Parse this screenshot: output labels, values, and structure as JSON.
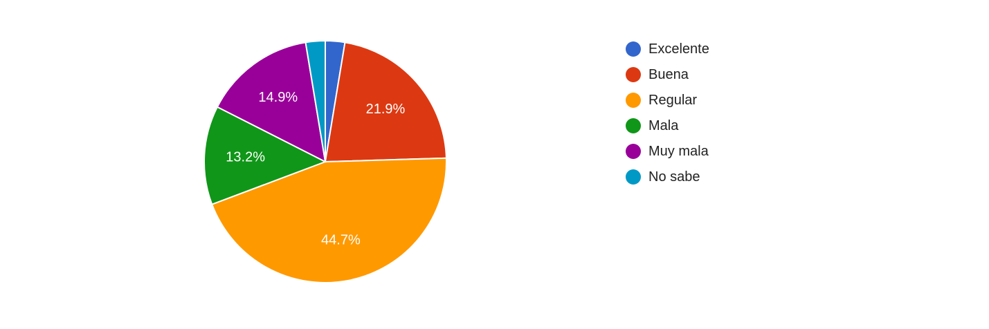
{
  "chart_data": {
    "type": "pie",
    "start_angle_deg": 90,
    "direction": "clockwise",
    "legend_position": "right",
    "slices": [
      {
        "label": "Excelente",
        "value": 2.6,
        "value_label": "",
        "color": "#3366cc"
      },
      {
        "label": "Buena",
        "value": 21.9,
        "value_label": "21.9%",
        "color": "#dc3912"
      },
      {
        "label": "Regular",
        "value": 44.7,
        "value_label": "44.7%",
        "color": "#ff9900"
      },
      {
        "label": "Mala",
        "value": 13.2,
        "value_label": "13.2%",
        "color": "#109618"
      },
      {
        "label": "Muy mala",
        "value": 14.9,
        "value_label": "14.9%",
        "color": "#990099"
      },
      {
        "label": "No sabe",
        "value": 2.6,
        "value_label": "",
        "color": "#0099c6"
      }
    ]
  }
}
